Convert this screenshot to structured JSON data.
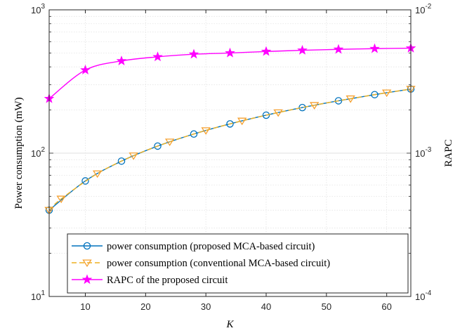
{
  "chart_data": {
    "type": "line",
    "xlabel": "K",
    "ylabel_left": "Power consumption (mW)",
    "ylabel_right": "RAPC",
    "xlim": [
      4,
      64
    ],
    "ylim_left": [
      10,
      1000
    ],
    "ylim_right": [
      0.0001,
      0.01
    ],
    "yscale": "log",
    "grid": true,
    "x_ticks": [
      "10",
      "20",
      "30",
      "40",
      "50",
      "60"
    ],
    "y_left_ticks": [
      {
        "base": "10",
        "exp": "1"
      },
      {
        "base": "10",
        "exp": "2"
      },
      {
        "base": "10",
        "exp": "3"
      }
    ],
    "y_right_ticks": [
      {
        "base": "10",
        "exp": "-4"
      },
      {
        "base": "10",
        "exp": "-3"
      },
      {
        "base": "10",
        "exp": "-2"
      }
    ],
    "legend_position": "bottom-left",
    "series": [
      {
        "name": "power consumption (proposed MCA-based circuit)",
        "axis": "left",
        "color": "#0072BD",
        "dash": "solid",
        "marker": "circle",
        "x": [
          4,
          10,
          16,
          22,
          28,
          34,
          40,
          46,
          52,
          58,
          64
        ],
        "y": [
          40,
          64,
          88,
          112,
          136,
          160,
          184,
          208,
          232,
          256,
          280
        ]
      },
      {
        "name": "power consumption (conventional MCA-based circuit)",
        "axis": "left",
        "color": "#EDB120",
        "marker_color": "#F5A030",
        "dash": "dashed",
        "marker": "triangle-down",
        "x": [
          4,
          6,
          12,
          18,
          24,
          30,
          36,
          42,
          48,
          54,
          60,
          64
        ],
        "y": [
          40,
          48,
          72,
          96,
          120,
          144,
          168,
          192,
          216,
          240,
          264,
          280
        ]
      },
      {
        "name": "RAPC of the proposed circuit",
        "axis": "right",
        "color": "#FF00FF",
        "dash": "solid",
        "marker": "pentagram",
        "x": [
          4,
          10,
          16,
          22,
          28,
          34,
          40,
          46,
          52,
          58,
          64
        ],
        "y": [
          0.0024,
          0.0038,
          0.0044,
          0.0047,
          0.0049,
          0.005,
          0.00512,
          0.00522,
          0.0053,
          0.00536,
          0.0054
        ]
      }
    ]
  }
}
